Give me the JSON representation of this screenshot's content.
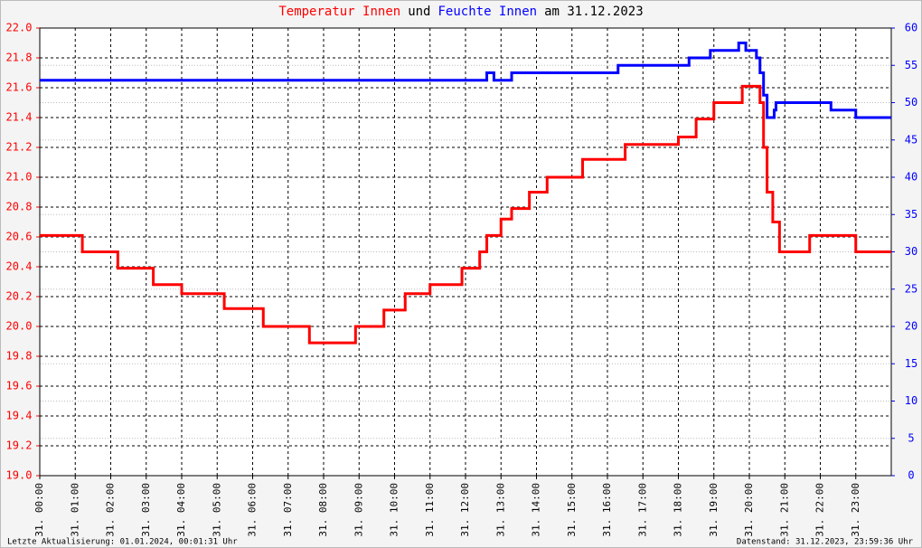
{
  "chart_data": {
    "type": "line",
    "title": [
      "Temperatur Innen",
      "und",
      "Feuchte Innen",
      "am 31.12.2023"
    ],
    "drawstyle": "steps-post",
    "grid": true,
    "xlim": [
      0,
      24
    ],
    "xticks": [
      {
        "value": 0,
        "label": "31. 00:00"
      },
      {
        "value": 1,
        "label": "31. 01:00"
      },
      {
        "value": 2,
        "label": "31. 02:00"
      },
      {
        "value": 3,
        "label": "31. 03:00"
      },
      {
        "value": 4,
        "label": "31. 04:00"
      },
      {
        "value": 5,
        "label": "31. 05:00"
      },
      {
        "value": 6,
        "label": "31. 06:00"
      },
      {
        "value": 7,
        "label": "31. 07:00"
      },
      {
        "value": 8,
        "label": "31. 08:00"
      },
      {
        "value": 9,
        "label": "31. 09:00"
      },
      {
        "value": 10,
        "label": "31. 10:00"
      },
      {
        "value": 11,
        "label": "31. 11:00"
      },
      {
        "value": 12,
        "label": "31. 12:00"
      },
      {
        "value": 13,
        "label": "31. 13:00"
      },
      {
        "value": 14,
        "label": "31. 14:00"
      },
      {
        "value": 15,
        "label": "31. 15:00"
      },
      {
        "value": 16,
        "label": "31. 16:00"
      },
      {
        "value": 17,
        "label": "31. 17:00"
      },
      {
        "value": 18,
        "label": "31. 18:00"
      },
      {
        "value": 19,
        "label": "31. 19:00"
      },
      {
        "value": 20,
        "label": "31. 20:00"
      },
      {
        "value": 21,
        "label": "31. 21:00"
      },
      {
        "value": 22,
        "label": "31. 22:00"
      },
      {
        "value": 23,
        "label": "31. 23:00"
      }
    ],
    "ylim": [
      19.0,
      22.0
    ],
    "yticks": [
      {
        "value": 19.0,
        "label": "19.0"
      },
      19.2,
      19.4,
      19.6,
      19.8,
      {
        "value": 20.0,
        "label": "20.0"
      },
      20.2,
      20.4,
      20.6,
      20.8,
      {
        "value": 21.0,
        "label": "21.0"
      },
      21.2,
      21.4,
      21.6,
      21.8,
      {
        "value": 22.0,
        "label": "22.0"
      }
    ],
    "y2lim": [
      0,
      60
    ],
    "y2ticks": [
      0,
      5,
      10,
      15,
      20,
      25,
      30,
      35,
      40,
      45,
      50,
      55,
      60
    ],
    "series": [
      {
        "name": "Temperatur Innen",
        "color": "#ff0000",
        "x": [
          0,
          1.2,
          2.2,
          3.2,
          4.0,
          5.2,
          6.3,
          7.6,
          8.9,
          9.7,
          10.3,
          11.0,
          11.9,
          12.4,
          12.6,
          13.0,
          13.3,
          13.8,
          14.3,
          15.3,
          16.5,
          18.0,
          18.5,
          19.0,
          19.8,
          20.3,
          20.4,
          20.5,
          20.66,
          20.85,
          21.7,
          23.0,
          24
        ],
        "values": [
          20.61,
          20.5,
          20.39,
          20.28,
          20.22,
          20.12,
          20.0,
          19.89,
          20.0,
          20.11,
          20.22,
          20.28,
          20.39,
          20.5,
          20.61,
          20.72,
          20.79,
          20.9,
          21.0,
          21.12,
          21.22,
          21.27,
          21.39,
          21.5,
          21.61,
          21.5,
          21.2,
          20.9,
          20.7,
          20.5,
          20.61,
          20.5,
          20.5
        ]
      },
      {
        "name": "Feuchte Innen",
        "color": "#0000ff",
        "axis": "y2",
        "x": [
          0,
          12.6,
          12.8,
          13.3,
          16.3,
          18.3,
          18.9,
          19.7,
          19.9,
          20.2,
          20.3,
          20.4,
          20.5,
          20.7,
          20.75,
          22.3,
          22.5,
          23.0,
          24
        ],
        "values": [
          53,
          54,
          53,
          54,
          55,
          56,
          57,
          58,
          57,
          56,
          54,
          51,
          48,
          49,
          50,
          49,
          49,
          48,
          48
        ]
      }
    ],
    "footer_left": "Letzte Aktualisierung: 01.01.2024, 00:01:31 Uhr",
    "footer_right": "Datenstand: 31.12.2023, 23:59:36 Uhr"
  }
}
